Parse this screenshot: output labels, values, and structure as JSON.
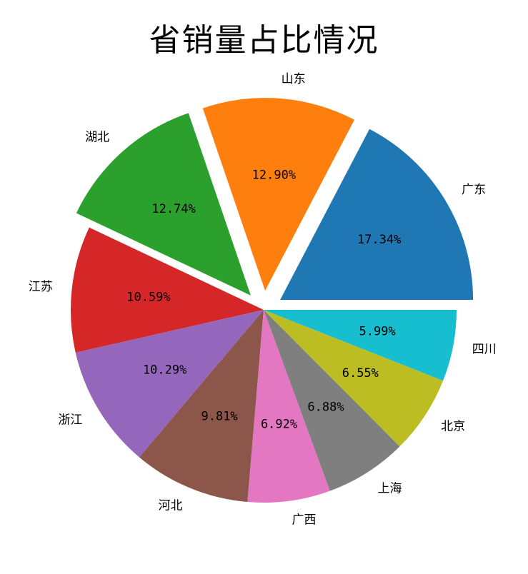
{
  "chart_data": {
    "type": "pie",
    "title": "省销量占比情况",
    "start_angle_deg": 0,
    "direction": "counterclockwise",
    "slices": [
      {
        "label": "广东",
        "value": 17.34,
        "pct_text": "17.34%",
        "color": "#1f77b4",
        "exploded": true
      },
      {
        "label": "山东",
        "value": 12.9,
        "pct_text": "12.90%",
        "color": "#ff7f0e",
        "exploded": true
      },
      {
        "label": "湖北",
        "value": 12.74,
        "pct_text": "12.74%",
        "color": "#2ca02c",
        "exploded": true
      },
      {
        "label": "江苏",
        "value": 10.59,
        "pct_text": "10.59%",
        "color": "#d62728",
        "exploded": false
      },
      {
        "label": "浙江",
        "value": 10.29,
        "pct_text": "10.29%",
        "color": "#9467bd",
        "exploded": false
      },
      {
        "label": "河北",
        "value": 9.81,
        "pct_text": "9.81%",
        "color": "#8c564b",
        "exploded": false
      },
      {
        "label": "广西",
        "value": 6.92,
        "pct_text": "6.92%",
        "color": "#e377c2",
        "exploded": false
      },
      {
        "label": "上海",
        "value": 6.88,
        "pct_text": "6.88%",
        "color": "#7f7f7f",
        "exploded": false
      },
      {
        "label": "北京",
        "value": 6.55,
        "pct_text": "6.55%",
        "color": "#bcbd22",
        "exploded": false
      },
      {
        "label": "四川",
        "value": 5.99,
        "pct_text": "5.99%",
        "color": "#17becf",
        "exploded": false
      }
    ]
  }
}
